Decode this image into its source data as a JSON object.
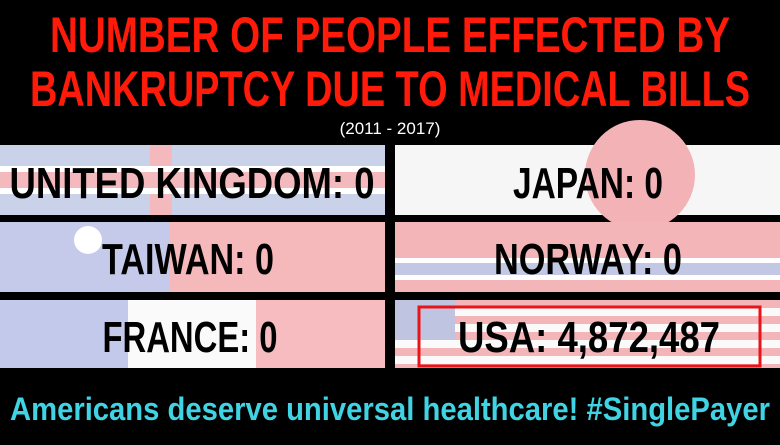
{
  "header": {
    "title": [
      "NUMBER OF PEOPLE EFFECTED BY",
      "BANKRUPTCY DUE TO MEDICAL BILLS"
    ],
    "subtitle": "(2011 - 2017)"
  },
  "cells": [
    "UNITED KINGDOM: 0",
    "JAPAN: 0",
    "TAIWAN: 0",
    "NORWAY: 0",
    "FRANCE: 0",
    "USA: 4,872,487"
  ],
  "footer": "Americans deserve universal healthcare! #SinglePayer"
}
